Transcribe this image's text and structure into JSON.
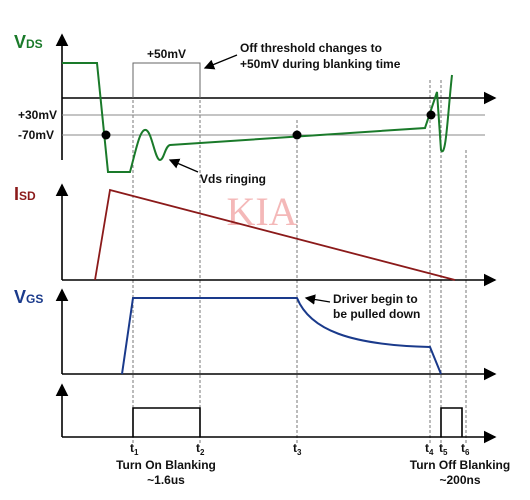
{
  "panels": {
    "vds": {
      "label": {
        "main": "V",
        "sub": "DS"
      },
      "box_label": "+50mV",
      "note": [
        "Off threshold changes to",
        "+50mV during blanking time"
      ],
      "levels": [
        "+30mV",
        "-70mV"
      ],
      "ringing": "Vds ringing"
    },
    "isd": {
      "label": {
        "main": "I",
        "sub": "SD"
      }
    },
    "vgs": {
      "label": {
        "main": "V",
        "sub": "GS"
      },
      "note": [
        "Driver begin to",
        "be pulled down"
      ]
    }
  },
  "watermark": "KIA",
  "times": [
    {
      "main": "t",
      "sub": "1"
    },
    {
      "main": "t",
      "sub": "2"
    },
    {
      "main": "t",
      "sub": "3"
    },
    {
      "main": "t",
      "sub": "4"
    },
    {
      "main": "t",
      "sub": "5"
    },
    {
      "main": "t",
      "sub": "6"
    }
  ],
  "blanking": {
    "on": [
      "Turn On Blanking",
      "~1.6us"
    ],
    "off": [
      "Turn Off Blanking",
      "~200ns"
    ]
  }
}
